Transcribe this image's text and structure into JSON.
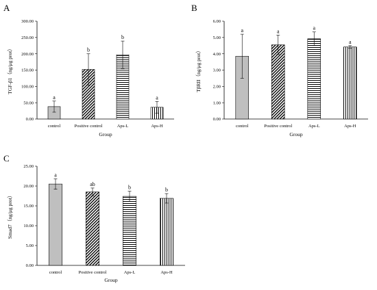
{
  "chart_data": [
    {
      "panel_label": "A",
      "type": "bar",
      "categories": [
        "control",
        "Positive control",
        "Aps-L",
        "Aps-H"
      ],
      "values": [
        38,
        152,
        197,
        36
      ],
      "errors": [
        17,
        48,
        42,
        18
      ],
      "significance": [
        "a",
        "b",
        "b",
        "a"
      ],
      "patterns": [
        "solid",
        "diagonal",
        "horizontal",
        "vertical"
      ],
      "xlabel": "Group",
      "ylabel": "TGF-β1（ng/μg prot）",
      "ylim": [
        0,
        300
      ],
      "yticks": [
        "0.00",
        "50.00",
        "100.00",
        "150.00",
        "200.00",
        "250.00",
        "300.00"
      ],
      "grid": false,
      "bar_fill": "#bfbfbf"
    },
    {
      "panel_label": "B",
      "type": "bar",
      "categories": [
        "control",
        "Positive control",
        "Aps-L",
        "Aps-H"
      ],
      "values": [
        3.85,
        4.55,
        4.92,
        4.42
      ],
      "errors": [
        1.35,
        0.6,
        0.42,
        0.08
      ],
      "significance": [
        "a",
        "a",
        "a",
        "a"
      ],
      "patterns": [
        "solid",
        "diagonal",
        "horizontal",
        "vertical"
      ],
      "xlabel": "Group",
      "ylabel": "TβRII（ng/μg prot）",
      "ylim": [
        0,
        6
      ],
      "yticks": [
        "0.00",
        "1.00",
        "2.00",
        "3.00",
        "4.00",
        "5.00",
        "6.00"
      ],
      "grid": false,
      "bar_fill": "#bfbfbf"
    },
    {
      "panel_label": "C",
      "type": "bar",
      "categories": [
        "control",
        "Positive control",
        "Aps-L",
        "Aps-H"
      ],
      "values": [
        20.5,
        18.5,
        17.4,
        16.9
      ],
      "errors": [
        1.3,
        1.0,
        1.3,
        1.2
      ],
      "significance": [
        "a",
        "ab",
        "b",
        "b"
      ],
      "patterns": [
        "solid",
        "diagonal",
        "horizontal",
        "vertical"
      ],
      "xlabel": "Group",
      "ylabel": "Smad7（ng/μg prot）",
      "ylim": [
        0,
        25
      ],
      "yticks": [
        "0.00",
        "5.00",
        "10.00",
        "15.00",
        "20.00",
        "25.00"
      ],
      "grid": false,
      "bar_fill": "#bfbfbf"
    }
  ]
}
